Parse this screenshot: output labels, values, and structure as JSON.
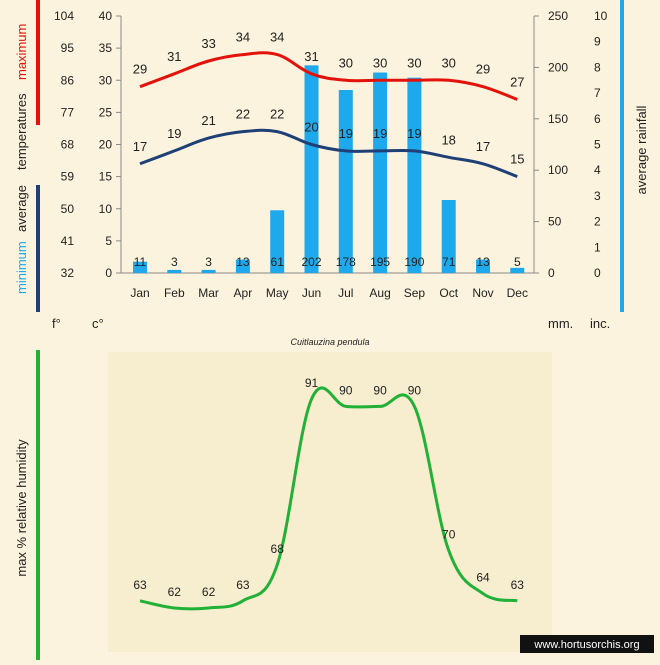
{
  "colors": {
    "background": "#fbf3dd",
    "panel": "#f7edcf",
    "maximum": "#e3120b",
    "minimum": "#1f3f77",
    "rainfall": "#1ea9ec",
    "humidity": "#21b137",
    "text": "#222222"
  },
  "caption": "Cuitlauzina pendula",
  "watermark": "www.hortusorchis.org",
  "chart_data": [
    {
      "type": "bar+line",
      "categories": [
        "Jan",
        "Feb",
        "Mar",
        "Apr",
        "May",
        "Jun",
        "Jul",
        "Aug",
        "Sep",
        "Oct",
        "Nov",
        "Dec"
      ],
      "series": [
        {
          "name": "maximum",
          "kind": "line",
          "axis": "celsius",
          "values": [
            29,
            31,
            33,
            34,
            34,
            31,
            30,
            30,
            30,
            30,
            29,
            27
          ]
        },
        {
          "name": "minimum",
          "kind": "line",
          "axis": "celsius",
          "values": [
            17,
            19,
            21,
            22,
            22,
            20,
            19,
            19,
            19,
            18,
            17,
            15
          ]
        },
        {
          "name": "average rainfall",
          "kind": "bar",
          "axis": "mm",
          "values": [
            11,
            3,
            3,
            13,
            61,
            202,
            178,
            195,
            190,
            71,
            13,
            5
          ]
        }
      ],
      "left_axis_label_parts": [
        "minimum",
        "average",
        "temperatures",
        "maximum"
      ],
      "right_axis_label": "average rainfall",
      "axes": {
        "fahrenheit": {
          "label": "f°",
          "ticks": [
            32,
            41,
            50,
            59,
            68,
            77,
            86,
            95,
            104
          ]
        },
        "celsius": {
          "label": "c°",
          "ticks": [
            0,
            5,
            10,
            15,
            20,
            25,
            30,
            35,
            40
          ],
          "ylim": [
            0,
            40
          ]
        },
        "mm": {
          "label": "mm.",
          "ticks": [
            0,
            50,
            100,
            150,
            200,
            250
          ],
          "ylim": [
            0,
            250
          ]
        },
        "inches": {
          "label": "inc.",
          "ticks": [
            0,
            1,
            2,
            3,
            4,
            5,
            6,
            7,
            8,
            9,
            10
          ]
        }
      },
      "grid": false
    },
    {
      "type": "line",
      "categories": [
        "Jan",
        "Feb",
        "Mar",
        "Apr",
        "May",
        "Jun",
        "Jul",
        "Aug",
        "Sep",
        "Oct",
        "Nov",
        "Dec"
      ],
      "series": [
        {
          "name": "max % relative humidity",
          "values": [
            63,
            62,
            62,
            63,
            68,
            91,
            90,
            90,
            90,
            70,
            64,
            63
          ]
        }
      ],
      "ylabel": "max % relative humidity",
      "grid": false
    }
  ]
}
